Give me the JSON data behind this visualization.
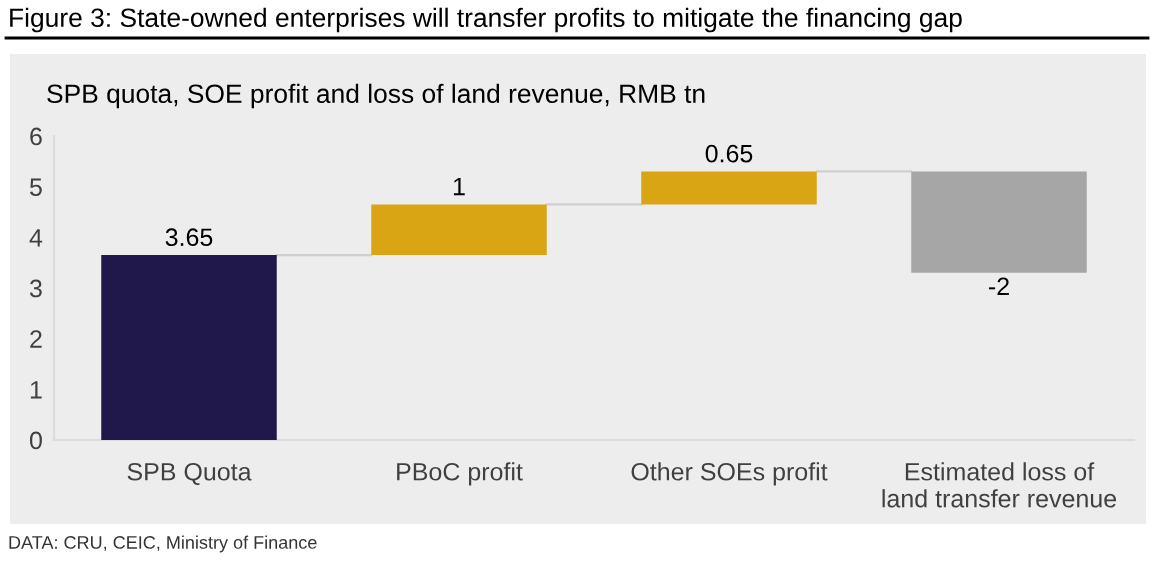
{
  "chart_data": {
    "type": "bar",
    "title": "Figure 3: State-owned enterprises will transfer profits to mitigate the financing gap",
    "subtitle": "SPB quota, SOE profit and loss of land revenue, RMB tn",
    "categories": [
      "SPB Quota",
      "PBoC profit",
      "Other SOEs profit",
      "Estimated loss of\nland transfer revenue"
    ],
    "values": [
      3.65,
      1,
      0.65,
      -2
    ],
    "base": [
      0,
      3.65,
      4.65,
      5.3
    ],
    "colors": [
      "#20184a",
      "#d9a515",
      "#d9a515",
      "#a6a6a6"
    ],
    "ylim": [
      0,
      6
    ],
    "yticks": [
      0,
      1,
      2,
      3,
      4,
      5,
      6
    ],
    "data_labels": true,
    "annotations": [
      "DATA: CRU, CEIC, Ministry of Finance"
    ]
  }
}
